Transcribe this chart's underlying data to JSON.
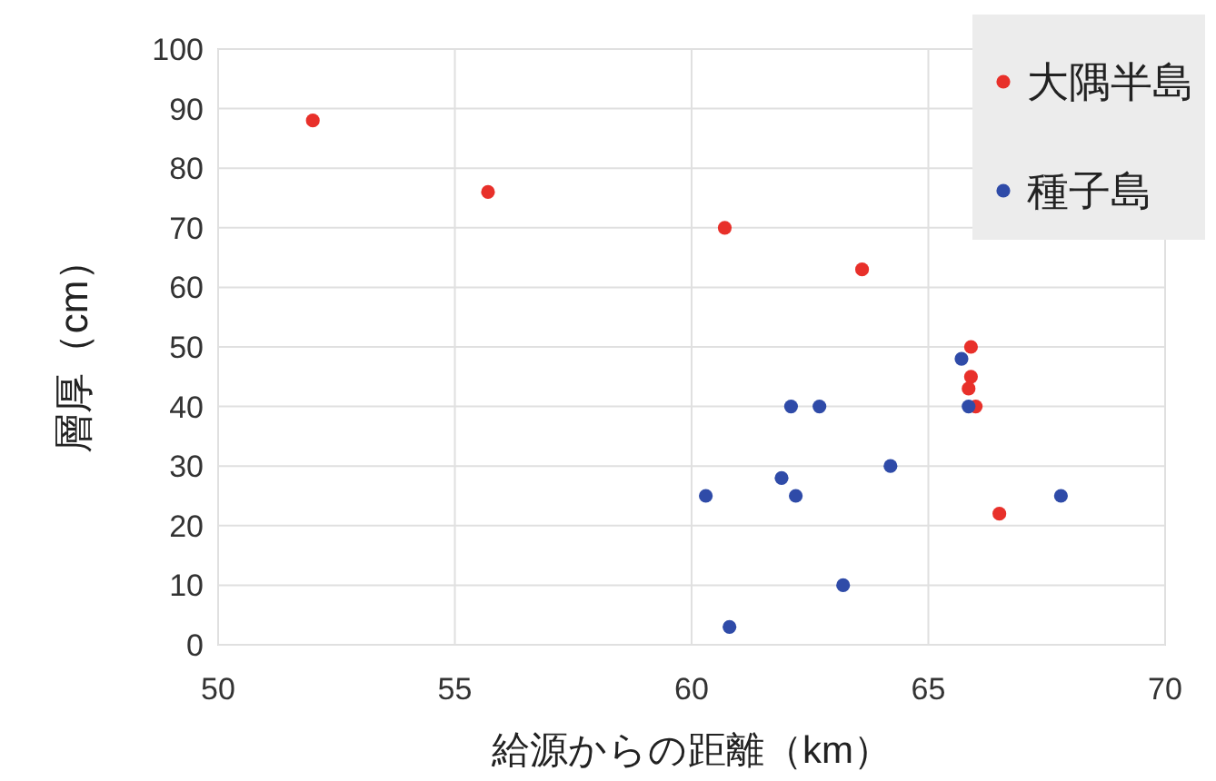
{
  "chart_data": {
    "type": "scatter",
    "xlabel": "給源からの距離（km）",
    "ylabel": "層厚（cm）",
    "xlim": [
      50,
      70
    ],
    "xticks": [
      50,
      55,
      60,
      65,
      70
    ],
    "ylim": [
      0,
      100
    ],
    "yticks": [
      0,
      10,
      20,
      30,
      40,
      50,
      60,
      70,
      80,
      90,
      100
    ],
    "grid": true,
    "legend": "top right",
    "marker": "circle",
    "series": [
      {
        "name": "大隅半島",
        "color": "#e8302a",
        "x": [
          52,
          55.7,
          60.7,
          63.6,
          65.9,
          65.9,
          65.85,
          66.0,
          66.5
        ],
        "values": [
          88,
          76,
          70,
          63,
          50,
          45,
          43,
          40,
          22
        ]
      },
      {
        "name": "種子島",
        "color": "#2f4ba8",
        "x": [
          60.3,
          60.8,
          61.9,
          62.1,
          62.2,
          62.7,
          63.2,
          64.2,
          65.7,
          65.85,
          67.8
        ],
        "values": [
          25,
          3,
          28,
          40,
          25,
          40,
          10,
          30,
          48,
          40,
          25
        ]
      }
    ]
  }
}
